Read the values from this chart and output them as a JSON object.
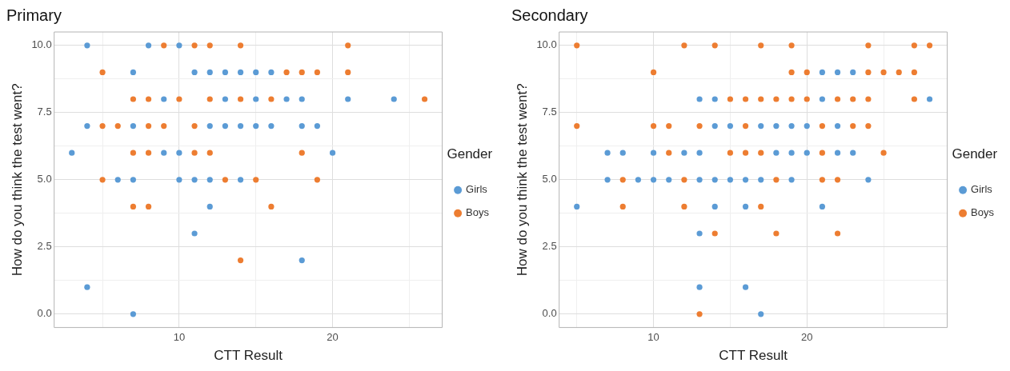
{
  "chart_data": [
    {
      "type": "scatter",
      "title": "Primary",
      "xlabel": "CTT Result",
      "ylabel": "How do you think the test went?",
      "legend_title": "Gender",
      "legend": "right",
      "grid": true,
      "marker": "circle",
      "xlim": [
        1.85,
        27.15
      ],
      "xticks": [
        {
          "value": 5,
          "label": null
        },
        {
          "value": 10,
          "label": "10"
        },
        {
          "value": 15,
          "label": null
        },
        {
          "value": 20,
          "label": "20"
        },
        {
          "value": 25,
          "label": null
        }
      ],
      "ylim": [
        -0.5,
        10.5
      ],
      "yticks": [
        {
          "value": 0,
          "label": "0.0"
        },
        {
          "value": 1.25,
          "label": null
        },
        {
          "value": 2.5,
          "label": "2.5"
        },
        {
          "value": 3.75,
          "label": null
        },
        {
          "value": 5,
          "label": "5.0"
        },
        {
          "value": 6.25,
          "label": null
        },
        {
          "value": 7.5,
          "label": "7.5"
        },
        {
          "value": 8.75,
          "label": null
        },
        {
          "value": 10,
          "label": "10.0"
        }
      ],
      "series": [
        {
          "name": "Girls",
          "color": "#5b9bd5",
          "x": [
            4,
            8,
            10,
            7,
            11,
            12,
            13,
            14,
            15,
            16,
            9,
            13,
            15,
            17,
            18,
            21,
            24,
            4,
            7,
            12,
            13,
            14,
            15,
            16,
            18,
            19,
            3,
            9,
            10,
            20,
            6,
            7,
            10,
            11,
            12,
            14,
            12,
            11,
            18,
            4,
            7
          ],
          "values": [
            10,
            10,
            10,
            9,
            9,
            9,
            9,
            9,
            9,
            9,
            8,
            8,
            8,
            8,
            8,
            8,
            8,
            7,
            7,
            7,
            7,
            7,
            7,
            7,
            7,
            7,
            6,
            6,
            6,
            6,
            5,
            5,
            5,
            5,
            5,
            5,
            4,
            3,
            2,
            1,
            0
          ]
        },
        {
          "name": "Boys",
          "color": "#ed7d31",
          "x": [
            9,
            11,
            12,
            14,
            21,
            5,
            17,
            18,
            19,
            21,
            7,
            8,
            10,
            12,
            14,
            16,
            26,
            5,
            6,
            8,
            9,
            11,
            7,
            8,
            11,
            12,
            18,
            5,
            13,
            15,
            19,
            7,
            8,
            16,
            14
          ],
          "values": [
            10,
            10,
            10,
            10,
            10,
            9,
            9,
            9,
            9,
            9,
            8,
            8,
            8,
            8,
            8,
            8,
            8,
            7,
            7,
            7,
            7,
            7,
            6,
            6,
            6,
            6,
            6,
            5,
            5,
            5,
            5,
            4,
            4,
            4,
            2
          ]
        }
      ]
    },
    {
      "type": "scatter",
      "title": "Secondary",
      "xlabel": "CTT Result",
      "ylabel": "How do you think the test went?",
      "legend_title": "Gender",
      "legend": "right",
      "grid": true,
      "marker": "circle",
      "xlim": [
        3.85,
        29.15
      ],
      "xticks": [
        {
          "value": 5,
          "label": null
        },
        {
          "value": 10,
          "label": "10"
        },
        {
          "value": 15,
          "label": null
        },
        {
          "value": 20,
          "label": "20"
        },
        {
          "value": 25,
          "label": null
        }
      ],
      "ylim": [
        -0.5,
        10.5
      ],
      "yticks": [
        {
          "value": 0,
          "label": "0.0"
        },
        {
          "value": 1.25,
          "label": null
        },
        {
          "value": 2.5,
          "label": "2.5"
        },
        {
          "value": 3.75,
          "label": null
        },
        {
          "value": 5,
          "label": "5.0"
        },
        {
          "value": 6.25,
          "label": null
        },
        {
          "value": 7.5,
          "label": "7.5"
        },
        {
          "value": 8.75,
          "label": null
        },
        {
          "value": 10,
          "label": "10.0"
        }
      ],
      "series": [
        {
          "name": "Girls",
          "color": "#5b9bd5",
          "x": [
            21,
            22,
            23,
            13,
            14,
            21,
            28,
            14,
            15,
            17,
            18,
            19,
            20,
            22,
            7,
            8,
            10,
            12,
            13,
            18,
            19,
            20,
            22,
            23,
            7,
            9,
            10,
            11,
            13,
            14,
            15,
            16,
            17,
            19,
            24,
            5,
            14,
            16,
            21,
            13,
            13,
            16,
            17
          ],
          "values": [
            9,
            9,
            9,
            8,
            8,
            8,
            8,
            7,
            7,
            7,
            7,
            7,
            7,
            7,
            6,
            6,
            6,
            6,
            6,
            6,
            6,
            6,
            6,
            6,
            5,
            5,
            5,
            5,
            5,
            5,
            5,
            5,
            5,
            5,
            5,
            4,
            4,
            4,
            4,
            3,
            1,
            1,
            0
          ]
        },
        {
          "name": "Boys",
          "color": "#ed7d31",
          "x": [
            5,
            12,
            14,
            17,
            19,
            24,
            27,
            28,
            10,
            19,
            20,
            24,
            25,
            26,
            27,
            15,
            16,
            17,
            18,
            19,
            20,
            22,
            23,
            24,
            27,
            5,
            10,
            11,
            13,
            16,
            21,
            23,
            24,
            11,
            15,
            16,
            17,
            21,
            25,
            8,
            12,
            18,
            21,
            22,
            8,
            12,
            17,
            14,
            18,
            22,
            13
          ],
          "values": [
            10,
            10,
            10,
            10,
            10,
            10,
            10,
            10,
            9,
            9,
            9,
            9,
            9,
            9,
            9,
            8,
            8,
            8,
            8,
            8,
            8,
            8,
            8,
            8,
            8,
            7,
            7,
            7,
            7,
            7,
            7,
            7,
            7,
            6,
            6,
            6,
            6,
            6,
            6,
            5,
            5,
            5,
            5,
            5,
            4,
            4,
            4,
            3,
            3,
            3,
            0
          ]
        }
      ]
    }
  ]
}
